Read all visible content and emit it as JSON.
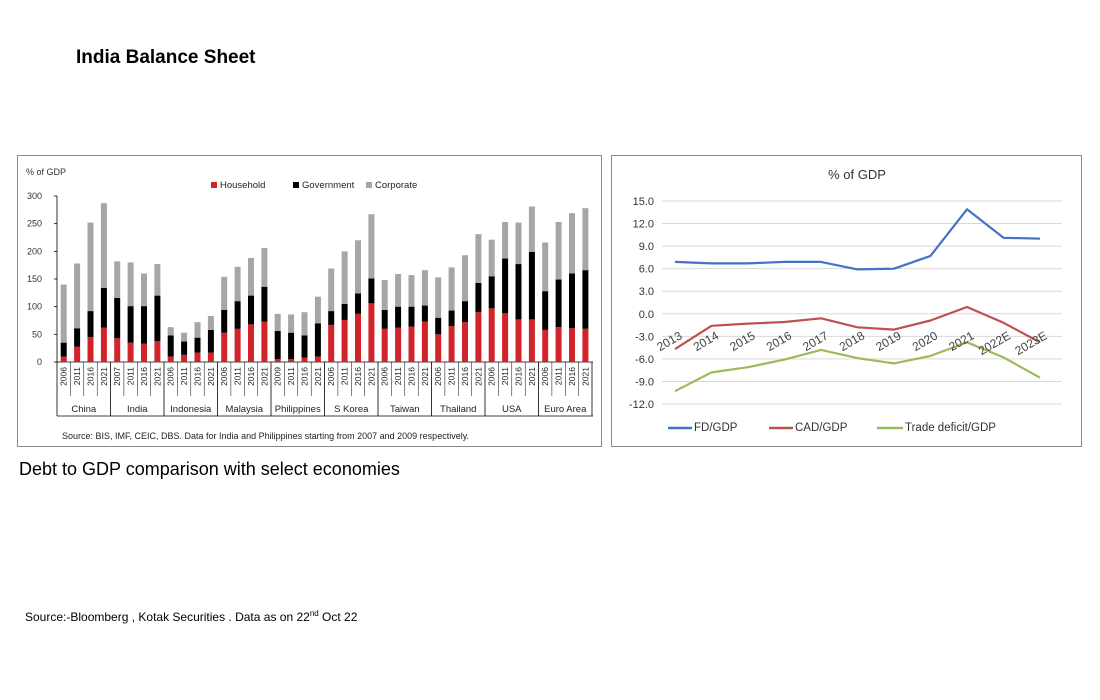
{
  "page": {
    "title": "India Balance Sheet",
    "caption": "Debt to GDP comparison with select economies",
    "source_prefix": "Source:-Bloomberg , Kotak Securities . Data as on 22",
    "source_sup": "nd",
    "source_suffix": " Oct 22"
  },
  "chart_data": [
    {
      "type": "bar",
      "stacked": true,
      "ylabel": "% of GDP",
      "ylim": [
        0,
        300
      ],
      "yticks": [
        0,
        50,
        100,
        150,
        200,
        250,
        300
      ],
      "grid": false,
      "legend_position": "top-center",
      "source_note": "Source: BIS, IMF, CEIC, DBS. Data for India and Philippines starting from 2007 and 2009 respectively.",
      "colors": {
        "Household": "#d2232a",
        "Government": "#000000",
        "Corporate": "#a6a6a6"
      },
      "groups": [
        {
          "name": "China",
          "years": [
            "2006",
            "2011",
            "2016",
            "2021"
          ],
          "household": [
            10,
            28,
            45,
            62
          ],
          "government": [
            25,
            33,
            47,
            72
          ],
          "corporate": [
            105,
            117,
            160,
            153
          ]
        },
        {
          "name": "India",
          "years": [
            "2007",
            "2011",
            "2016",
            "2021"
          ],
          "household": [
            43,
            35,
            33,
            38
          ],
          "government": [
            73,
            66,
            68,
            82
          ],
          "corporate": [
            66,
            79,
            59,
            57
          ]
        },
        {
          "name": "Indonesia",
          "years": [
            "2006",
            "2011",
            "2016",
            "2021"
          ],
          "household": [
            10,
            13,
            17,
            17
          ],
          "government": [
            38,
            24,
            27,
            41
          ],
          "corporate": [
            15,
            16,
            28,
            25
          ]
        },
        {
          "name": "Malaysia",
          "years": [
            "2006",
            "2011",
            "2016",
            "2021"
          ],
          "household": [
            53,
            60,
            68,
            73
          ],
          "government": [
            41,
            50,
            52,
            63
          ],
          "corporate": [
            60,
            62,
            68,
            70
          ]
        },
        {
          "name": "Philippines",
          "years": [
            "2009",
            "2011",
            "2016",
            "2021"
          ],
          "household": [
            5,
            5,
            8,
            10
          ],
          "government": [
            51,
            48,
            40,
            60
          ],
          "corporate": [
            31,
            33,
            42,
            48
          ]
        },
        {
          "name": "S Korea",
          "years": [
            "2006",
            "2011",
            "2016",
            "2021"
          ],
          "household": [
            67,
            76,
            87,
            106
          ],
          "government": [
            25,
            29,
            37,
            45
          ],
          "corporate": [
            77,
            95,
            96,
            116
          ]
        },
        {
          "name": "Taiwan",
          "years": [
            "2006",
            "2011",
            "2016",
            "2021"
          ],
          "household": [
            60,
            62,
            64,
            73
          ],
          "government": [
            34,
            38,
            36,
            29
          ],
          "corporate": [
            54,
            59,
            57,
            64
          ]
        },
        {
          "name": "Thailand",
          "years": [
            "2006",
            "2011",
            "2016",
            "2021"
          ],
          "household": [
            50,
            65,
            72,
            90
          ],
          "government": [
            30,
            28,
            38,
            53
          ],
          "corporate": [
            73,
            78,
            83,
            88
          ]
        },
        {
          "name": "USA",
          "years": [
            "2006",
            "2011",
            "2016",
            "2021"
          ],
          "household": [
            97,
            88,
            77,
            77
          ],
          "government": [
            58,
            99,
            100,
            122
          ],
          "corporate": [
            66,
            66,
            75,
            82
          ]
        },
        {
          "name": "Euro Area",
          "years": [
            "2006",
            "2011",
            "2016",
            "2021"
          ],
          "household": [
            58,
            63,
            61,
            60
          ],
          "government": [
            70,
            86,
            99,
            106
          ],
          "corporate": [
            88,
            104,
            109,
            112
          ]
        }
      ],
      "legend": [
        "Household",
        "Government",
        "Corporate"
      ]
    },
    {
      "type": "line",
      "title": "% of GDP",
      "x": [
        "2013",
        "2014",
        "2015",
        "2016",
        "2017",
        "2018",
        "2019",
        "2020",
        "2021",
        "2022E",
        "2023E"
      ],
      "ylim": [
        -12,
        15
      ],
      "yticks": [
        "15.0",
        "12.0",
        "9.0",
        "6.0",
        "3.0",
        "0.0",
        "-3.0",
        "-6.0",
        "-9.0",
        "-12.0"
      ],
      "grid": true,
      "legend_position": "bottom",
      "series": [
        {
          "name": "FD/GDP",
          "color": "#4472c4",
          "values": [
            6.9,
            6.7,
            6.7,
            6.9,
            6.9,
            5.9,
            6.0,
            7.7,
            13.9,
            10.1,
            10.0
          ]
        },
        {
          "name": "CAD/GDP",
          "color": "#c0504d",
          "values": [
            -4.7,
            -1.6,
            -1.3,
            -1.1,
            -0.6,
            -1.8,
            -2.1,
            -0.9,
            0.9,
            -1.2,
            -3.8
          ]
        },
        {
          "name": "Trade deficit/GDP",
          "color": "#9bbb59",
          "values": [
            -10.3,
            -7.8,
            -7.1,
            -6.1,
            -4.8,
            -5.9,
            -6.6,
            -5.6,
            -3.8,
            -5.8,
            -8.5
          ]
        }
      ]
    }
  ]
}
